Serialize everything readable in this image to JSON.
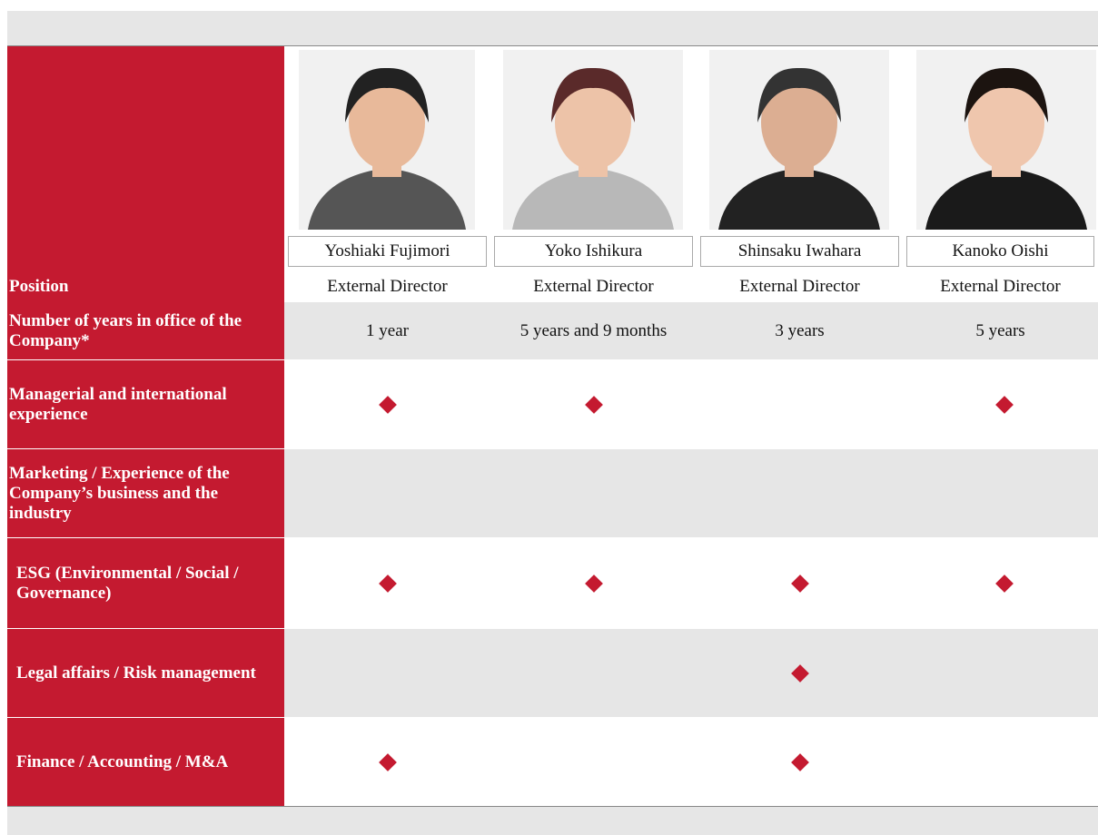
{
  "directors": [
    {
      "name": "Yoshiaki Fujimori",
      "position": "External Director",
      "years": "1 year"
    },
    {
      "name": "Yoko Ishikura",
      "position": "External Director",
      "years": "5 years and 9 months"
    },
    {
      "name": "Shinsaku Iwahara",
      "position": "External Director",
      "years": "3 years"
    },
    {
      "name": "Kanoko Oishi",
      "position": "External Director",
      "years": "5 years"
    }
  ],
  "row_labels": {
    "position": "Position",
    "years": "Number of years in office of the Company*"
  },
  "skills": [
    {
      "label": "Managerial and international experience",
      "marks": [
        true,
        true,
        false,
        true
      ]
    },
    {
      "label": "Marketing / Experience of the Company’s business and the industry",
      "marks": [
        false,
        false,
        false,
        false
      ]
    },
    {
      "label": "ESG (Environmental / Social / Governance)",
      "marks": [
        true,
        true,
        true,
        true
      ]
    },
    {
      "label": "Legal affairs / Risk management",
      "marks": [
        false,
        false,
        true,
        false
      ]
    },
    {
      "label": "Finance / Accounting / M&A",
      "marks": [
        true,
        false,
        true,
        false
      ]
    }
  ]
}
